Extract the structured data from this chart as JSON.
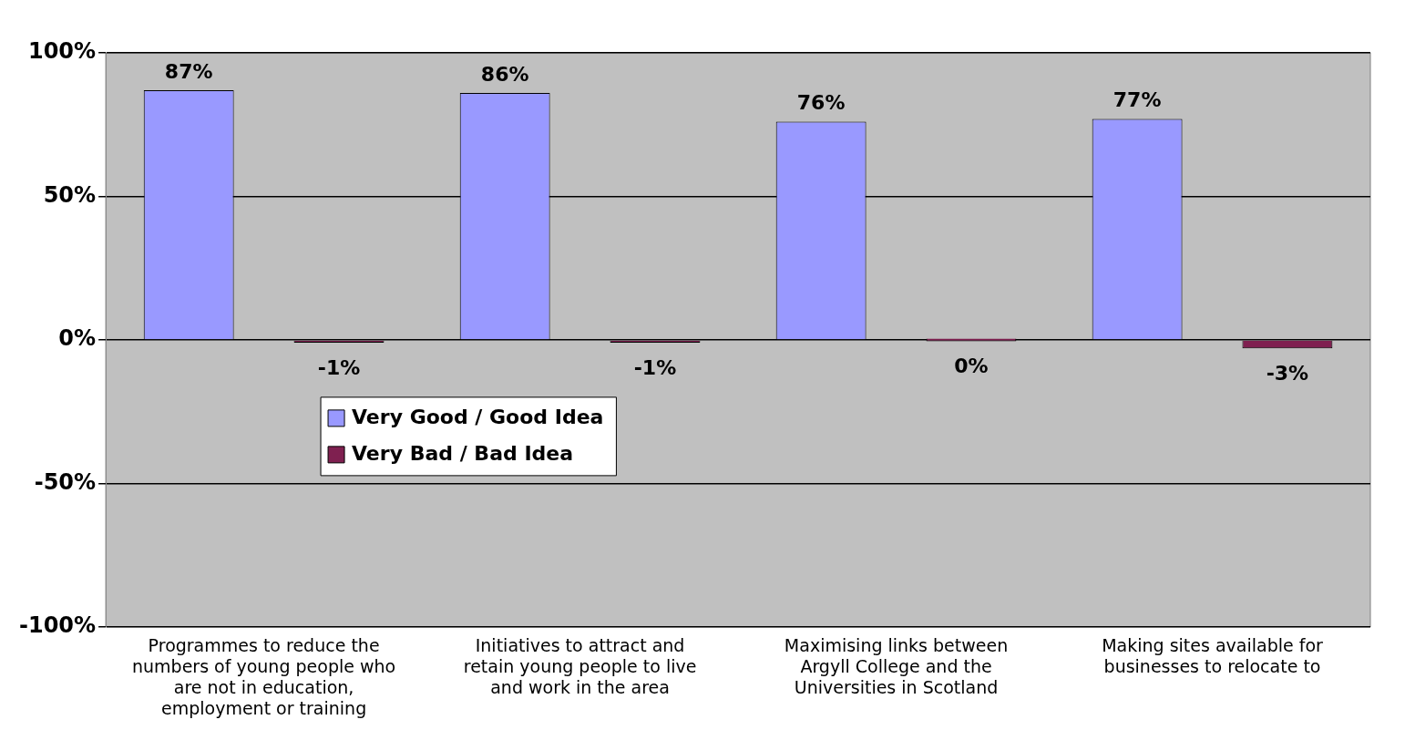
{
  "chart_data": {
    "type": "bar",
    "categories": [
      "Programmes to reduce the numbers of young people who are not in education, employment or training",
      "Initiatives to attract and retain young people to live and work in the area",
      "Maximising links between Argyll College and the Universities in Scotland",
      "Making sites available for businesses to relocate to"
    ],
    "series": [
      {
        "name": "Very Good / Good Idea",
        "color": "#9999ff",
        "values": [
          87,
          86,
          76,
          77
        ],
        "value_labels": [
          "87%",
          "86%",
          "76%",
          "77%"
        ]
      },
      {
        "name": "Very Bad / Bad Idea",
        "color": "#7f2050",
        "values": [
          -1,
          -1,
          0,
          -3
        ],
        "value_labels": [
          "-1%",
          "-1%",
          "0%",
          "-3%"
        ]
      }
    ],
    "ylim": [
      -100,
      100
    ],
    "yticks": [
      {
        "value": -100,
        "label": "-100%"
      },
      {
        "value": -50,
        "label": "-50%"
      },
      {
        "value": 0,
        "label": "0%"
      },
      {
        "value": 50,
        "label": "50%"
      },
      {
        "value": 100,
        "label": "100%"
      }
    ],
    "grid": "y",
    "legend": "left"
  }
}
